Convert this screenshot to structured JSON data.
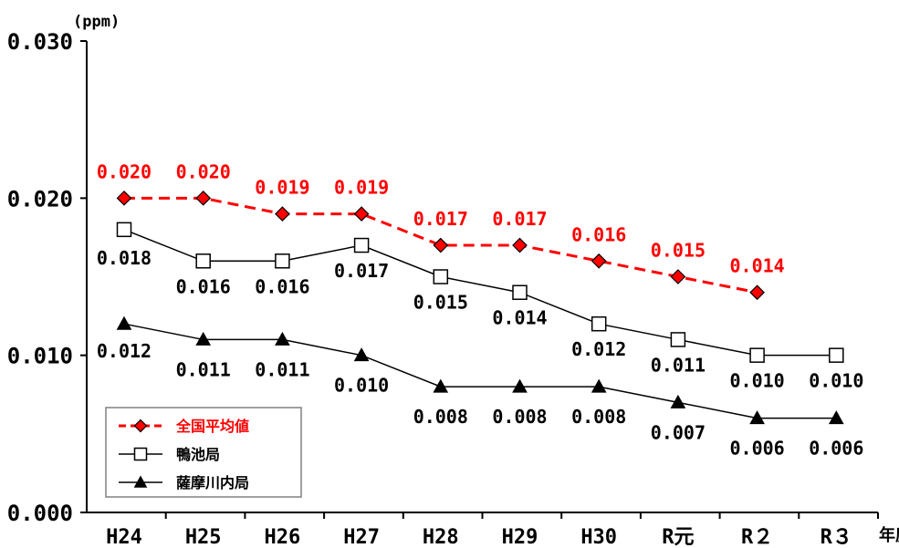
{
  "chart_data": {
    "type": "line",
    "categories": [
      "H24",
      "H25",
      "H26",
      "H27",
      "H28",
      "H29",
      "H30",
      "R元",
      "R２",
      "R３"
    ],
    "ylim": [
      0.0,
      0.03
    ],
    "yticks": [
      "0.000",
      "0.010",
      "0.020",
      "0.030"
    ],
    "yunit": "(ppm)",
    "xunit": "年度",
    "legend_position": "bottom-left",
    "series": [
      {
        "name": "全国平均値",
        "values": [
          0.02,
          0.02,
          0.019,
          0.019,
          0.017,
          0.017,
          0.016,
          0.015,
          0.014,
          null
        ],
        "labels": [
          "0.020",
          "0.020",
          "0.019",
          "0.019",
          "0.017",
          "0.017",
          "0.016",
          "0.015",
          "0.014",
          ""
        ],
        "color": "#ff0000",
        "marker": "diamond",
        "line_style": "dashed"
      },
      {
        "name": "鴨池局",
        "values": [
          0.018,
          0.016,
          0.016,
          0.017,
          0.015,
          0.014,
          0.012,
          0.011,
          0.01,
          0.01
        ],
        "labels": [
          "0.018",
          "0.016",
          "0.016",
          "0.017",
          "0.015",
          "0.014",
          "0.012",
          "0.011",
          "0.010",
          "0.010"
        ],
        "color": "#000000",
        "marker": "square-open",
        "line_style": "solid"
      },
      {
        "name": "薩摩川内局",
        "values": [
          0.012,
          0.011,
          0.011,
          0.01,
          0.008,
          0.008,
          0.008,
          0.007,
          0.006,
          0.006
        ],
        "labels": [
          "0.012",
          "0.011",
          "0.011",
          "0.010",
          "0.008",
          "0.008",
          "0.008",
          "0.007",
          "0.006",
          "0.006"
        ],
        "color": "#000000",
        "marker": "triangle",
        "line_style": "solid"
      }
    ]
  }
}
